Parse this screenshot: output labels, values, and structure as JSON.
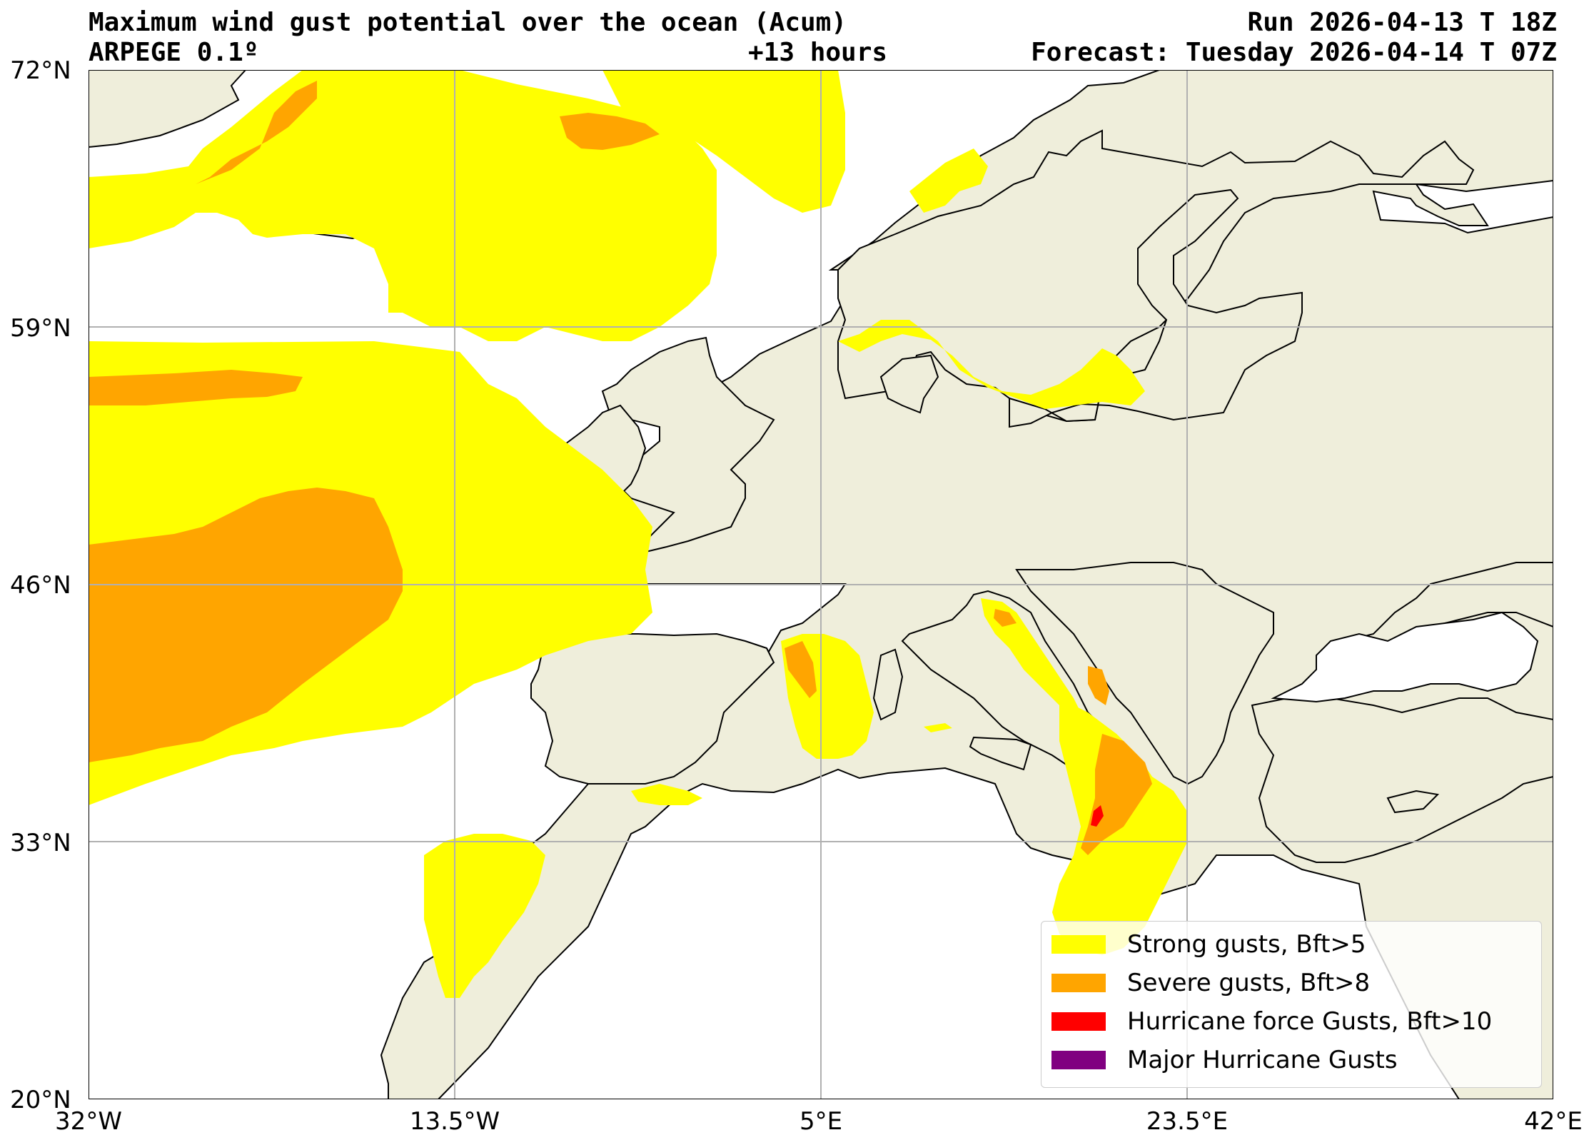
{
  "title": {
    "left_line1": "Maximum wind gust potential over the ocean (Acum)",
    "left_line2": "ARPEGE 0.1º",
    "center_line2": "+13 hours",
    "right_line1": "Run 2026-04-13 T 18Z",
    "right_line2": "Forecast: Tuesday 2026-04-14 T 07Z"
  },
  "axes": {
    "lat_labels": [
      "72°N",
      "59°N",
      "46°N",
      "33°N",
      "20°N"
    ],
    "lon_labels": [
      "32°W",
      "13.5°W",
      "5°E",
      "23.5°E",
      "42°E"
    ],
    "lat_range": [
      20,
      72
    ],
    "lon_range": [
      -32,
      42
    ],
    "grid": true
  },
  "colors": {
    "ocean": "#ffffff",
    "land": "#efeedb",
    "strong": "#ffff00",
    "severe": "#ffa500",
    "hurricane": "#ff0000",
    "major": "#800080",
    "grid": "#b0b0b0",
    "coast": "#000000"
  },
  "legend": {
    "items": [
      {
        "label": "Strong gusts, Bft>5",
        "color": "#ffff00"
      },
      {
        "label": "Severe gusts, Bft>8",
        "color": "#ffa500"
      },
      {
        "label": "Hurricane force Gusts, Bft>10",
        "color": "#ff0000"
      },
      {
        "label": "Major Hurricane Gusts",
        "color": "#800080"
      }
    ]
  }
}
